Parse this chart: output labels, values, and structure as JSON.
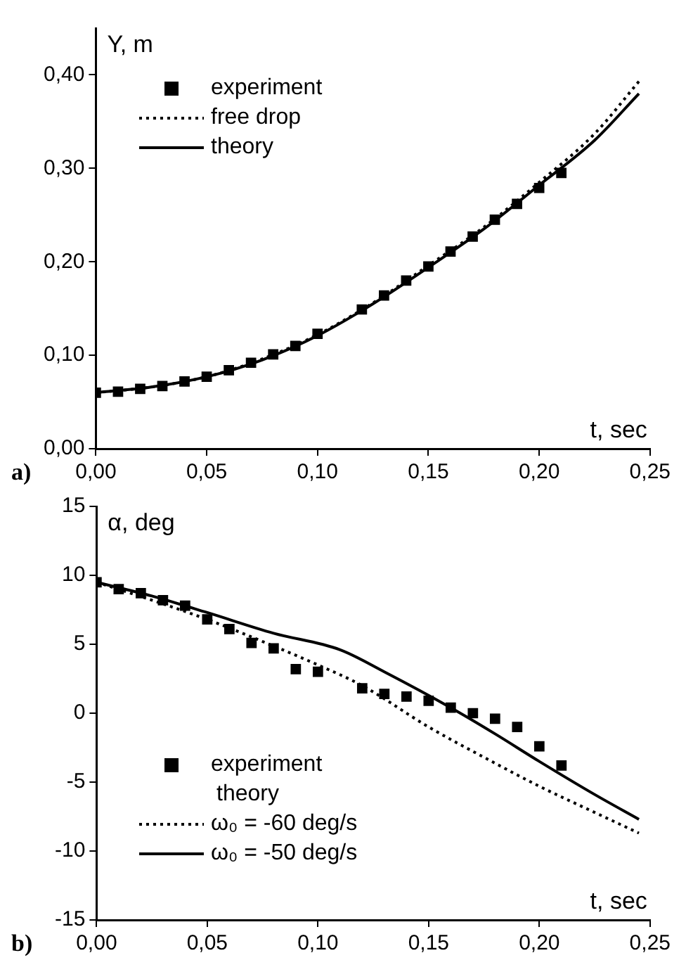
{
  "chart_data": [
    {
      "type": "line",
      "ylabel": "Y, m",
      "xlabel": "t, sec",
      "annotations": [
        "a)"
      ],
      "legend": "top left",
      "grid": false,
      "xlim": [
        0,
        0.25
      ],
      "xticks": [
        {
          "value": 0,
          "label": "0,00"
        },
        {
          "value": 0.05,
          "label": "0,05"
        },
        {
          "value": 0.1,
          "label": "0,10"
        },
        {
          "value": 0.15,
          "label": "0,15"
        },
        {
          "value": 0.2,
          "label": "0,20"
        },
        {
          "value": 0.25,
          "label": "0,25"
        }
      ],
      "ylim": [
        0,
        0.45
      ],
      "yticks": [
        {
          "value": 0,
          "label": "0,00"
        },
        {
          "value": 0.1,
          "label": "0,10"
        },
        {
          "value": 0.2,
          "label": "0,20"
        },
        {
          "value": 0.3,
          "label": "0,30"
        },
        {
          "value": 0.4,
          "label": "0,40"
        }
      ],
      "series": [
        {
          "name": "experiment",
          "type": "scatter",
          "marker": "square",
          "color": "#000000",
          "x": [
            0,
            0.01,
            0.02,
            0.03,
            0.04,
            0.05,
            0.06,
            0.07,
            0.08,
            0.09,
            0.1,
            0.12,
            0.13,
            0.14,
            0.15,
            0.16,
            0.17,
            0.18,
            0.19,
            0.2,
            0.21
          ],
          "values": [
            0.06,
            0.061,
            0.064,
            0.067,
            0.072,
            0.077,
            0.084,
            0.092,
            0.101,
            0.11,
            0.123,
            0.149,
            0.164,
            0.18,
            0.195,
            0.211,
            0.227,
            0.245,
            0.262,
            0.279,
            0.295
          ]
        },
        {
          "name": "free drop",
          "type": "line",
          "line_style": "dotted",
          "color": "#000000",
          "x": [
            0,
            0.025,
            0.05,
            0.075,
            0.1,
            0.125,
            0.15,
            0.175,
            0.2,
            0.225,
            0.245
          ],
          "values": [
            0.06,
            0.066,
            0.077,
            0.096,
            0.122,
            0.156,
            0.196,
            0.237,
            0.285,
            0.337,
            0.393
          ]
        },
        {
          "name": "theory",
          "type": "line",
          "line_style": "solid",
          "color": "#000000",
          "x": [
            0,
            0.025,
            0.05,
            0.075,
            0.1,
            0.125,
            0.15,
            0.175,
            0.2,
            0.225,
            0.245
          ],
          "values": [
            0.06,
            0.066,
            0.077,
            0.095,
            0.121,
            0.155,
            0.194,
            0.235,
            0.282,
            0.33,
            0.38
          ]
        }
      ]
    },
    {
      "type": "line",
      "ylabel": "α, deg",
      "xlabel": "t, sec",
      "annotations": [
        "b)"
      ],
      "legend": "bottom left",
      "legend_title": "theory",
      "grid": false,
      "xlim": [
        0,
        0.25
      ],
      "xticks": [
        {
          "value": 0,
          "label": "0,00"
        },
        {
          "value": 0.05,
          "label": "0,05"
        },
        {
          "value": 0.1,
          "label": "0,10"
        },
        {
          "value": 0.15,
          "label": "0,15"
        },
        {
          "value": 0.2,
          "label": "0,20"
        },
        {
          "value": 0.25,
          "label": "0,25"
        }
      ],
      "ylim": [
        -15,
        15
      ],
      "yticks": [
        -15,
        -10,
        -5,
        0,
        5,
        10,
        15
      ],
      "series": [
        {
          "name": "experiment",
          "type": "scatter",
          "marker": "square",
          "color": "#000000",
          "x": [
            0,
            0.01,
            0.02,
            0.03,
            0.04,
            0.05,
            0.06,
            0.07,
            0.08,
            0.09,
            0.1,
            0.12,
            0.13,
            0.14,
            0.15,
            0.16,
            0.17,
            0.18,
            0.19,
            0.2,
            0.21
          ],
          "values": [
            9.5,
            9,
            8.7,
            8.2,
            7.8,
            6.8,
            6.1,
            5.1,
            4.7,
            3.2,
            3,
            1.8,
            1.4,
            1.2,
            0.9,
            0.4,
            0,
            -0.4,
            -1,
            -2.4,
            -3.8
          ]
        },
        {
          "name": "ω₀ = -60 deg/s",
          "type": "line",
          "line_style": "dotted",
          "color": "#000000",
          "x": [
            0,
            0.025,
            0.05,
            0.075,
            0.1,
            0.12,
            0.15,
            0.175,
            0.2,
            0.225,
            0.245
          ],
          "values": [
            9.5,
            8.2,
            6.8,
            5.2,
            3.5,
            2,
            -1,
            -3.2,
            -5.3,
            -7.2,
            -8.7
          ]
        },
        {
          "name": "ω₀ = -50 deg/s",
          "type": "line",
          "line_style": "solid",
          "color": "#000000",
          "x": [
            0,
            0.025,
            0.05,
            0.08,
            0.11,
            0.13,
            0.16,
            0.18,
            0.2,
            0.225,
            0.245
          ],
          "values": [
            9.5,
            8.5,
            7.3,
            5.8,
            4.6,
            3,
            0.4,
            -1.5,
            -3.5,
            -5.9,
            -7.7
          ]
        }
      ]
    }
  ]
}
